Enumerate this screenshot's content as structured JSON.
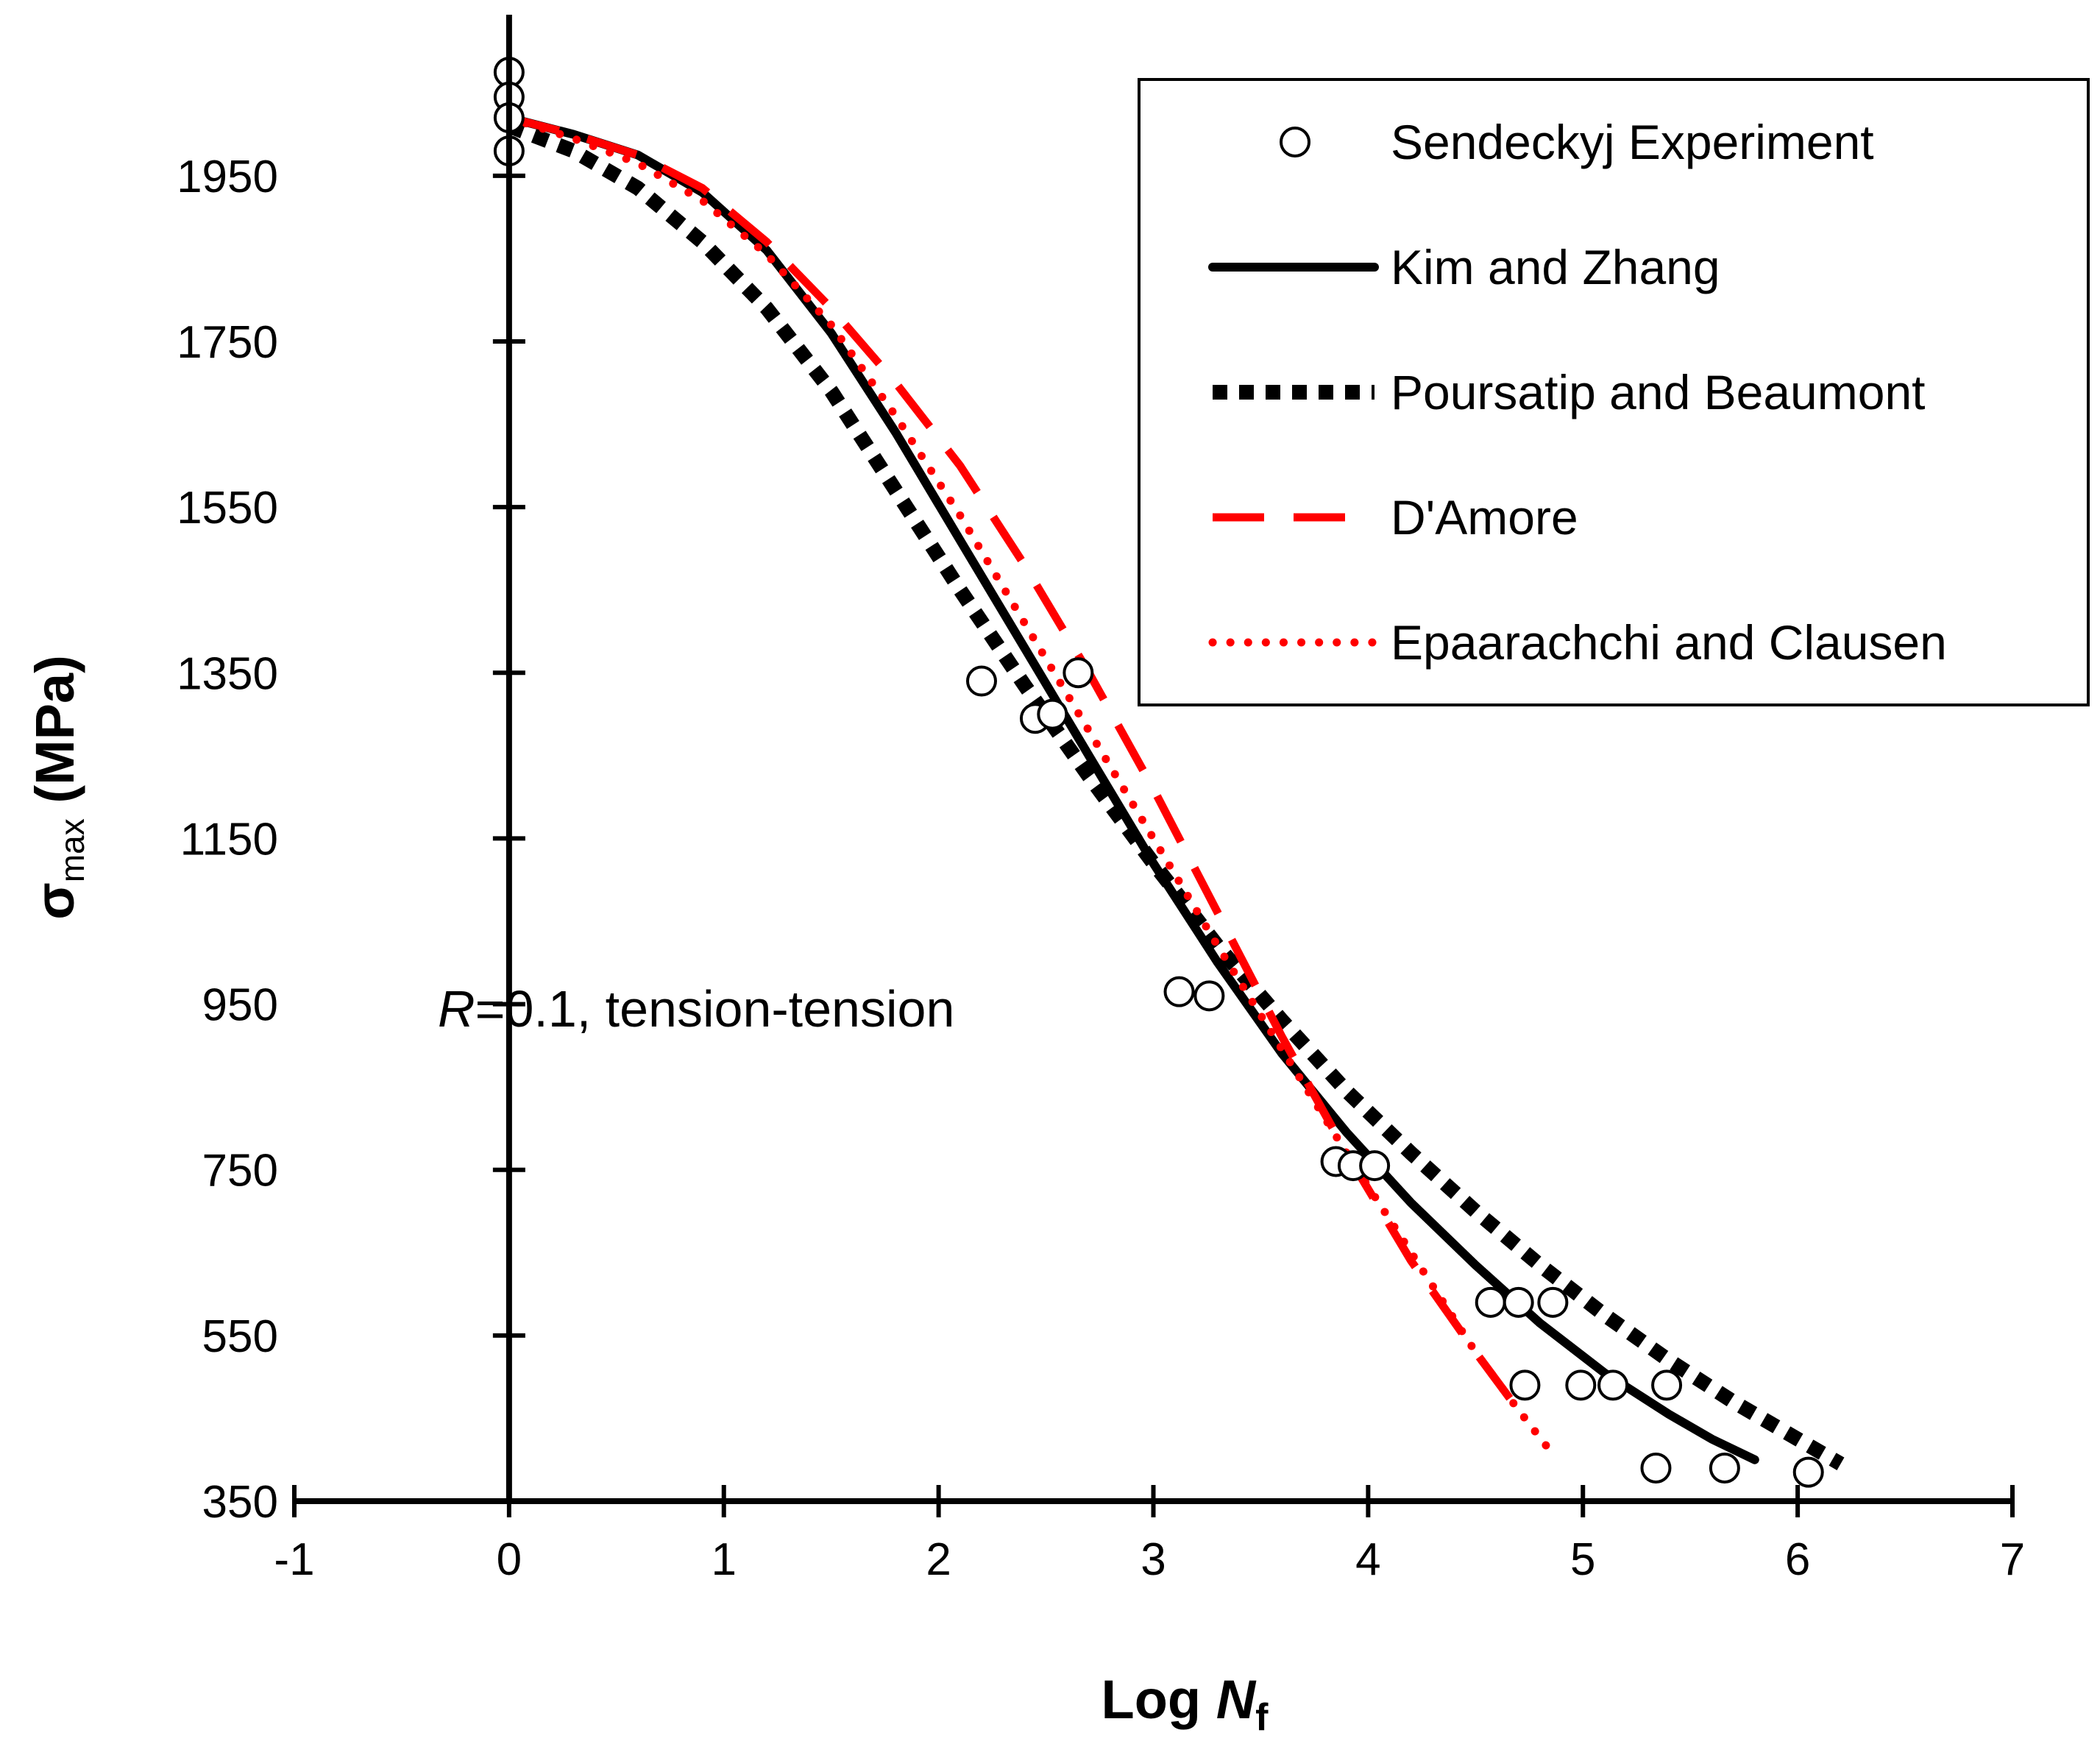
{
  "chart_data": {
    "type": "line",
    "xlabel": {
      "main": "Log ",
      "var": "N",
      "sub": "f"
    },
    "ylabel": {
      "main": "σ",
      "sub": "max",
      "unit": " (MPa)"
    },
    "xlim": [
      -1,
      7
    ],
    "ylim": [
      350,
      2100
    ],
    "xticks": [
      -1,
      0,
      1,
      2,
      3,
      4,
      5,
      6,
      7
    ],
    "yticks": [
      350,
      550,
      750,
      950,
      1150,
      1350,
      1550,
      1750,
      1950
    ],
    "annotation": {
      "italic": "R",
      "text": "=0.1, tension-tension"
    },
    "legend_position": "top-right",
    "series": [
      {
        "name": "Sendeckyj Experiment",
        "style": "markers",
        "color": "#000000",
        "points": [
          [
            0,
            2075
          ],
          [
            0,
            2045
          ],
          [
            0,
            2020
          ],
          [
            0,
            1980
          ],
          [
            2.2,
            1340
          ],
          [
            2.45,
            1295
          ],
          [
            2.53,
            1300
          ],
          [
            2.65,
            1350
          ],
          [
            3.12,
            965
          ],
          [
            3.26,
            960
          ],
          [
            3.85,
            760
          ],
          [
            3.93,
            755
          ],
          [
            4.03,
            755
          ],
          [
            4.57,
            590
          ],
          [
            4.7,
            590
          ],
          [
            4.86,
            590
          ],
          [
            4.73,
            490
          ],
          [
            4.99,
            490
          ],
          [
            5.14,
            490
          ],
          [
            5.39,
            490
          ],
          [
            5.34,
            390
          ],
          [
            5.66,
            390
          ],
          [
            6.05,
            385
          ]
        ]
      },
      {
        "name": "Kim and Zhang",
        "style": "solid",
        "color": "#000000",
        "points": [
          [
            0,
            2020
          ],
          [
            0.3,
            2000
          ],
          [
            0.6,
            1975
          ],
          [
            0.9,
            1930
          ],
          [
            1.2,
            1860
          ],
          [
            1.5,
            1760
          ],
          [
            1.8,
            1640
          ],
          [
            2.1,
            1510
          ],
          [
            2.4,
            1380
          ],
          [
            2.7,
            1250
          ],
          [
            3.0,
            1120
          ],
          [
            3.3,
            1000
          ],
          [
            3.6,
            890
          ],
          [
            3.9,
            795
          ],
          [
            4.2,
            710
          ],
          [
            4.5,
            635
          ],
          [
            4.8,
            565
          ],
          [
            5.1,
            505
          ],
          [
            5.4,
            455
          ],
          [
            5.6,
            425
          ],
          [
            5.8,
            400
          ]
        ]
      },
      {
        "name": "Poursatip and Beaumont",
        "style": "dotted-heavy",
        "color": "#000000",
        "points": [
          [
            0,
            2010
          ],
          [
            0.3,
            1980
          ],
          [
            0.6,
            1935
          ],
          [
            0.9,
            1870
          ],
          [
            1.2,
            1790
          ],
          [
            1.5,
            1690
          ],
          [
            1.8,
            1570
          ],
          [
            2.1,
            1450
          ],
          [
            2.4,
            1335
          ],
          [
            2.7,
            1225
          ],
          [
            3.0,
            1120
          ],
          [
            3.3,
            1020
          ],
          [
            3.6,
            930
          ],
          [
            3.9,
            845
          ],
          [
            4.2,
            770
          ],
          [
            4.5,
            700
          ],
          [
            4.8,
            635
          ],
          [
            5.1,
            575
          ],
          [
            5.4,
            520
          ],
          [
            5.7,
            470
          ],
          [
            6.0,
            425
          ],
          [
            6.2,
            395
          ]
        ]
      },
      {
        "name": "D'Amore",
        "style": "dashed",
        "color": "#ff0000",
        "points": [
          [
            0,
            2020
          ],
          [
            0.3,
            2000
          ],
          [
            0.6,
            1975
          ],
          [
            0.9,
            1935
          ],
          [
            1.2,
            1870
          ],
          [
            1.5,
            1790
          ],
          [
            1.8,
            1700
          ],
          [
            2.1,
            1600
          ],
          [
            2.4,
            1480
          ],
          [
            2.7,
            1350
          ],
          [
            3.0,
            1210
          ],
          [
            3.3,
            1060
          ],
          [
            3.6,
            910
          ],
          [
            3.9,
            770
          ],
          [
            4.2,
            640
          ],
          [
            4.5,
            530
          ],
          [
            4.7,
            460
          ]
        ]
      },
      {
        "name": "Epaarachchi and Clausen",
        "style": "dotted",
        "color": "#ff0000",
        "points": [
          [
            0,
            2020
          ],
          [
            0.3,
            1995
          ],
          [
            0.6,
            1965
          ],
          [
            0.9,
            1920
          ],
          [
            1.2,
            1855
          ],
          [
            1.5,
            1770
          ],
          [
            1.8,
            1660
          ],
          [
            2.1,
            1540
          ],
          [
            2.4,
            1410
          ],
          [
            2.7,
            1280
          ],
          [
            3.0,
            1150
          ],
          [
            3.3,
            1020
          ],
          [
            3.6,
            895
          ],
          [
            3.9,
            770
          ],
          [
            4.2,
            650
          ],
          [
            4.5,
            530
          ],
          [
            4.7,
            460
          ],
          [
            4.85,
            410
          ]
        ]
      }
    ]
  }
}
